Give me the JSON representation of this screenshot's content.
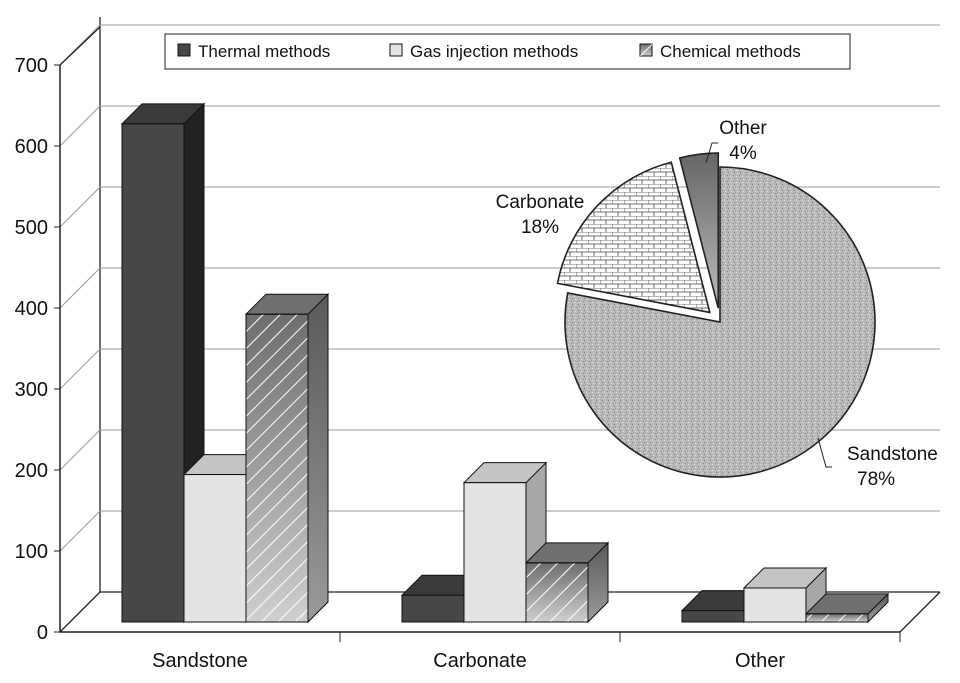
{
  "chart_data": [
    {
      "type": "bar",
      "style": "3d-clustered",
      "categories": [
        "Sandstone",
        "Carbonate",
        "Other"
      ],
      "series": [
        {
          "name": "Thermal methods",
          "values": [
            615,
            33,
            14
          ],
          "color": "#474747",
          "pattern": "solid"
        },
        {
          "name": "Gas injection methods",
          "values": [
            182,
            172,
            42
          ],
          "color": "#e4e4e4",
          "pattern": "solid"
        },
        {
          "name": "Chemical methods",
          "values": [
            380,
            73,
            10
          ],
          "color": "#8a8a8a",
          "pattern": "diagonal-hatch"
        }
      ],
      "yticks": [
        "0",
        "100",
        "200",
        "300",
        "400",
        "500",
        "600",
        "700"
      ],
      "ylim": [
        0,
        700
      ],
      "grid": true,
      "legend": "top"
    },
    {
      "type": "pie",
      "slices": [
        {
          "label": "Sandstone",
          "pct_label": "78%",
          "value": 78,
          "pattern": "speckled"
        },
        {
          "label": "Carbonate",
          "pct_label": "18%",
          "value": 18,
          "pattern": "brick"
        },
        {
          "label": "Other",
          "pct_label": "4%",
          "value": 4,
          "pattern": "gradient"
        }
      ]
    }
  ]
}
